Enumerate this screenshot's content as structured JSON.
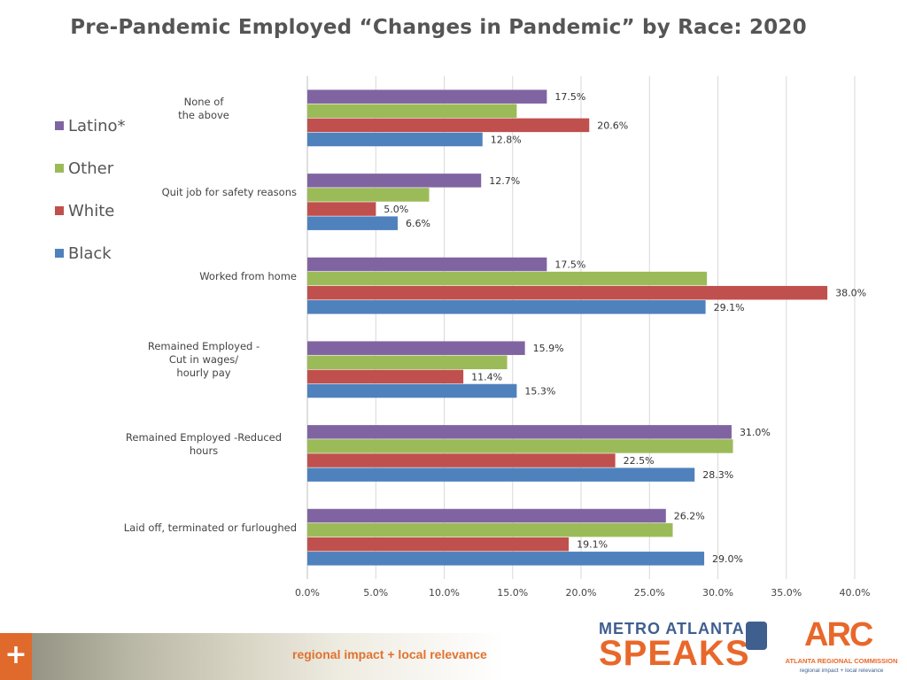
{
  "chart_data": {
    "type": "bar",
    "orientation": "horizontal",
    "title": "Pre-Pandemic Employed “Changes in Pandemic” by Race: 2020",
    "categories": [
      "None of the above",
      "Quit job for safety reasons",
      "Worked from home",
      "Remained Employed - Cut in wages/ hourly pay",
      "Remained Employed -Reduced hours",
      "Laid off, terminated or furloughed"
    ],
    "category_lines": [
      [
        "None of",
        "the above"
      ],
      [
        "Quit job for safety reasons"
      ],
      [
        "Worked from home"
      ],
      [
        "Remained Employed -",
        "Cut in wages/",
        "hourly pay"
      ],
      [
        "Remained Employed -Reduced",
        "hours"
      ],
      [
        "Laid off, terminated or furloughed"
      ]
    ],
    "series": [
      {
        "name": "Latino*",
        "color": "#8064a2",
        "values": [
          17.5,
          12.7,
          17.5,
          15.9,
          31.0,
          26.2
        ],
        "labels": [
          "17.5%",
          "12.7%",
          "17.5%",
          "15.9%",
          "31.0%",
          "26.2%"
        ]
      },
      {
        "name": "Other",
        "color": "#9bbb59",
        "values": [
          15.3,
          8.9,
          29.2,
          14.6,
          31.1,
          26.7
        ],
        "labels": [
          "",
          "",
          "",
          "",
          "",
          ""
        ]
      },
      {
        "name": "White",
        "color": "#c0504d",
        "values": [
          20.6,
          5.0,
          38.0,
          11.4,
          22.5,
          19.1
        ],
        "labels": [
          "20.6%",
          "5.0%",
          "38.0%",
          "11.4%",
          "22.5%",
          "19.1%"
        ]
      },
      {
        "name": "Black",
        "color": "#4f81bd",
        "values": [
          12.8,
          6.6,
          29.1,
          15.3,
          28.3,
          29.0
        ],
        "labels": [
          "12.8%",
          "6.6%",
          "29.1%",
          "15.3%",
          "28.3%",
          "29.0%"
        ]
      }
    ],
    "xlim": [
      0,
      40
    ],
    "xticks": [
      0,
      5,
      10,
      15,
      20,
      25,
      30,
      35,
      40
    ],
    "xtick_labels": [
      "0.0%",
      "5.0%",
      "10.0%",
      "15.0%",
      "20.0%",
      "25.0%",
      "30.0%",
      "35.0%",
      "40.0%"
    ],
    "grid": true,
    "legend_position": "left"
  },
  "footer": {
    "plus": "+",
    "tagline": "regional impact + local relevance"
  },
  "logos": {
    "mas_top": "METRO ATLANTA",
    "mas_bottom": "SPEAKS",
    "arc_mark": "ARC",
    "arc_name": "ATLANTA REGIONAL COMMISSION",
    "arc_tagline": "regional impact + local relevance"
  },
  "colors": {
    "accent_orange": "#e8682a",
    "accent_blue": "#3f5f8f"
  }
}
